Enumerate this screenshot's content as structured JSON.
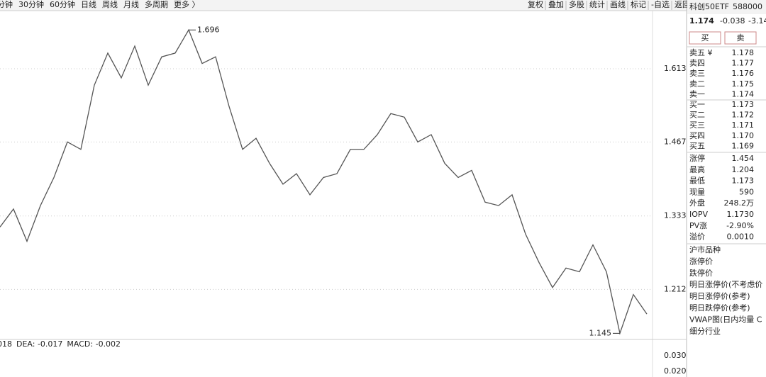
{
  "toolbar": {
    "periods": [
      "分钟",
      "30分钟",
      "60分钟",
      "日线",
      "周线",
      "月线",
      "多周期",
      "更多 〉"
    ],
    "active": 3,
    "tools": [
      "复权",
      "叠加",
      "多股",
      "统计",
      "画线",
      "标记",
      "-自选",
      "返回"
    ]
  },
  "chart_data": {
    "type": "line",
    "log_scale": true,
    "ylim": [
      1.137,
      1.739
    ],
    "yticks": [
      1.613,
      1.467,
      1.333,
      1.212
    ],
    "grid": true,
    "series": [
      {
        "color": "#555555",
        "values": [
          1.314,
          1.345,
          1.29,
          1.351,
          1.401,
          1.467,
          1.453,
          1.579,
          1.646,
          1.594,
          1.661,
          1.579,
          1.638,
          1.646,
          1.696,
          1.624,
          1.638,
          1.536,
          1.453,
          1.474,
          1.427,
          1.389,
          1.408,
          1.37,
          1.401,
          1.408,
          1.453,
          1.453,
          1.481,
          1.522,
          1.515,
          1.467,
          1.481,
          1.427,
          1.401,
          1.414,
          1.357,
          1.351,
          1.37,
          1.302,
          1.255,
          1.215,
          1.246,
          1.24,
          1.284,
          1.24,
          1.145,
          1.204,
          1.174
        ]
      }
    ],
    "annotations": [
      1.696,
      1.145
    ]
  },
  "macd": {
    "labels": [
      "018",
      "DEA: -0.017",
      "MACD: -0.002"
    ],
    "yticks": [
      "0.030",
      "0.020"
    ]
  },
  "quote": {
    "name": "科创50ETF",
    "code": "588000",
    "price": "1.174",
    "change": "-0.038",
    "pct": "-3.14",
    "buttons": [
      "买",
      "卖"
    ],
    "asks": [
      [
        "卖五 ¥",
        "1.178"
      ],
      [
        "卖四",
        "1.177"
      ],
      [
        "卖三",
        "1.176"
      ],
      [
        "卖二",
        "1.175"
      ],
      [
        "卖一",
        "1.174"
      ]
    ],
    "bids": [
      [
        "买一",
        "1.173"
      ],
      [
        "买二",
        "1.172"
      ],
      [
        "买三",
        "1.171"
      ],
      [
        "买四",
        "1.170"
      ],
      [
        "买五",
        "1.169"
      ]
    ],
    "stats": [
      [
        "涨停",
        "1.454"
      ],
      [
        "最高",
        "1.204"
      ],
      [
        "最低",
        "1.173"
      ],
      [
        "现量",
        "590"
      ],
      [
        "外盘",
        "248.2万"
      ],
      [
        "IOPV",
        "1.1730"
      ],
      [
        "PV涨",
        "-2.90%"
      ],
      [
        "溢价",
        "0.0010"
      ]
    ],
    "sections": [
      "沪市品种",
      "涨停价",
      "跌停价",
      "明日涨停价(不考虑价",
      "明日涨停价(参考)",
      "明日跌停价(参考)",
      "VWAP图(日内均量 C",
      "细分行业"
    ]
  }
}
